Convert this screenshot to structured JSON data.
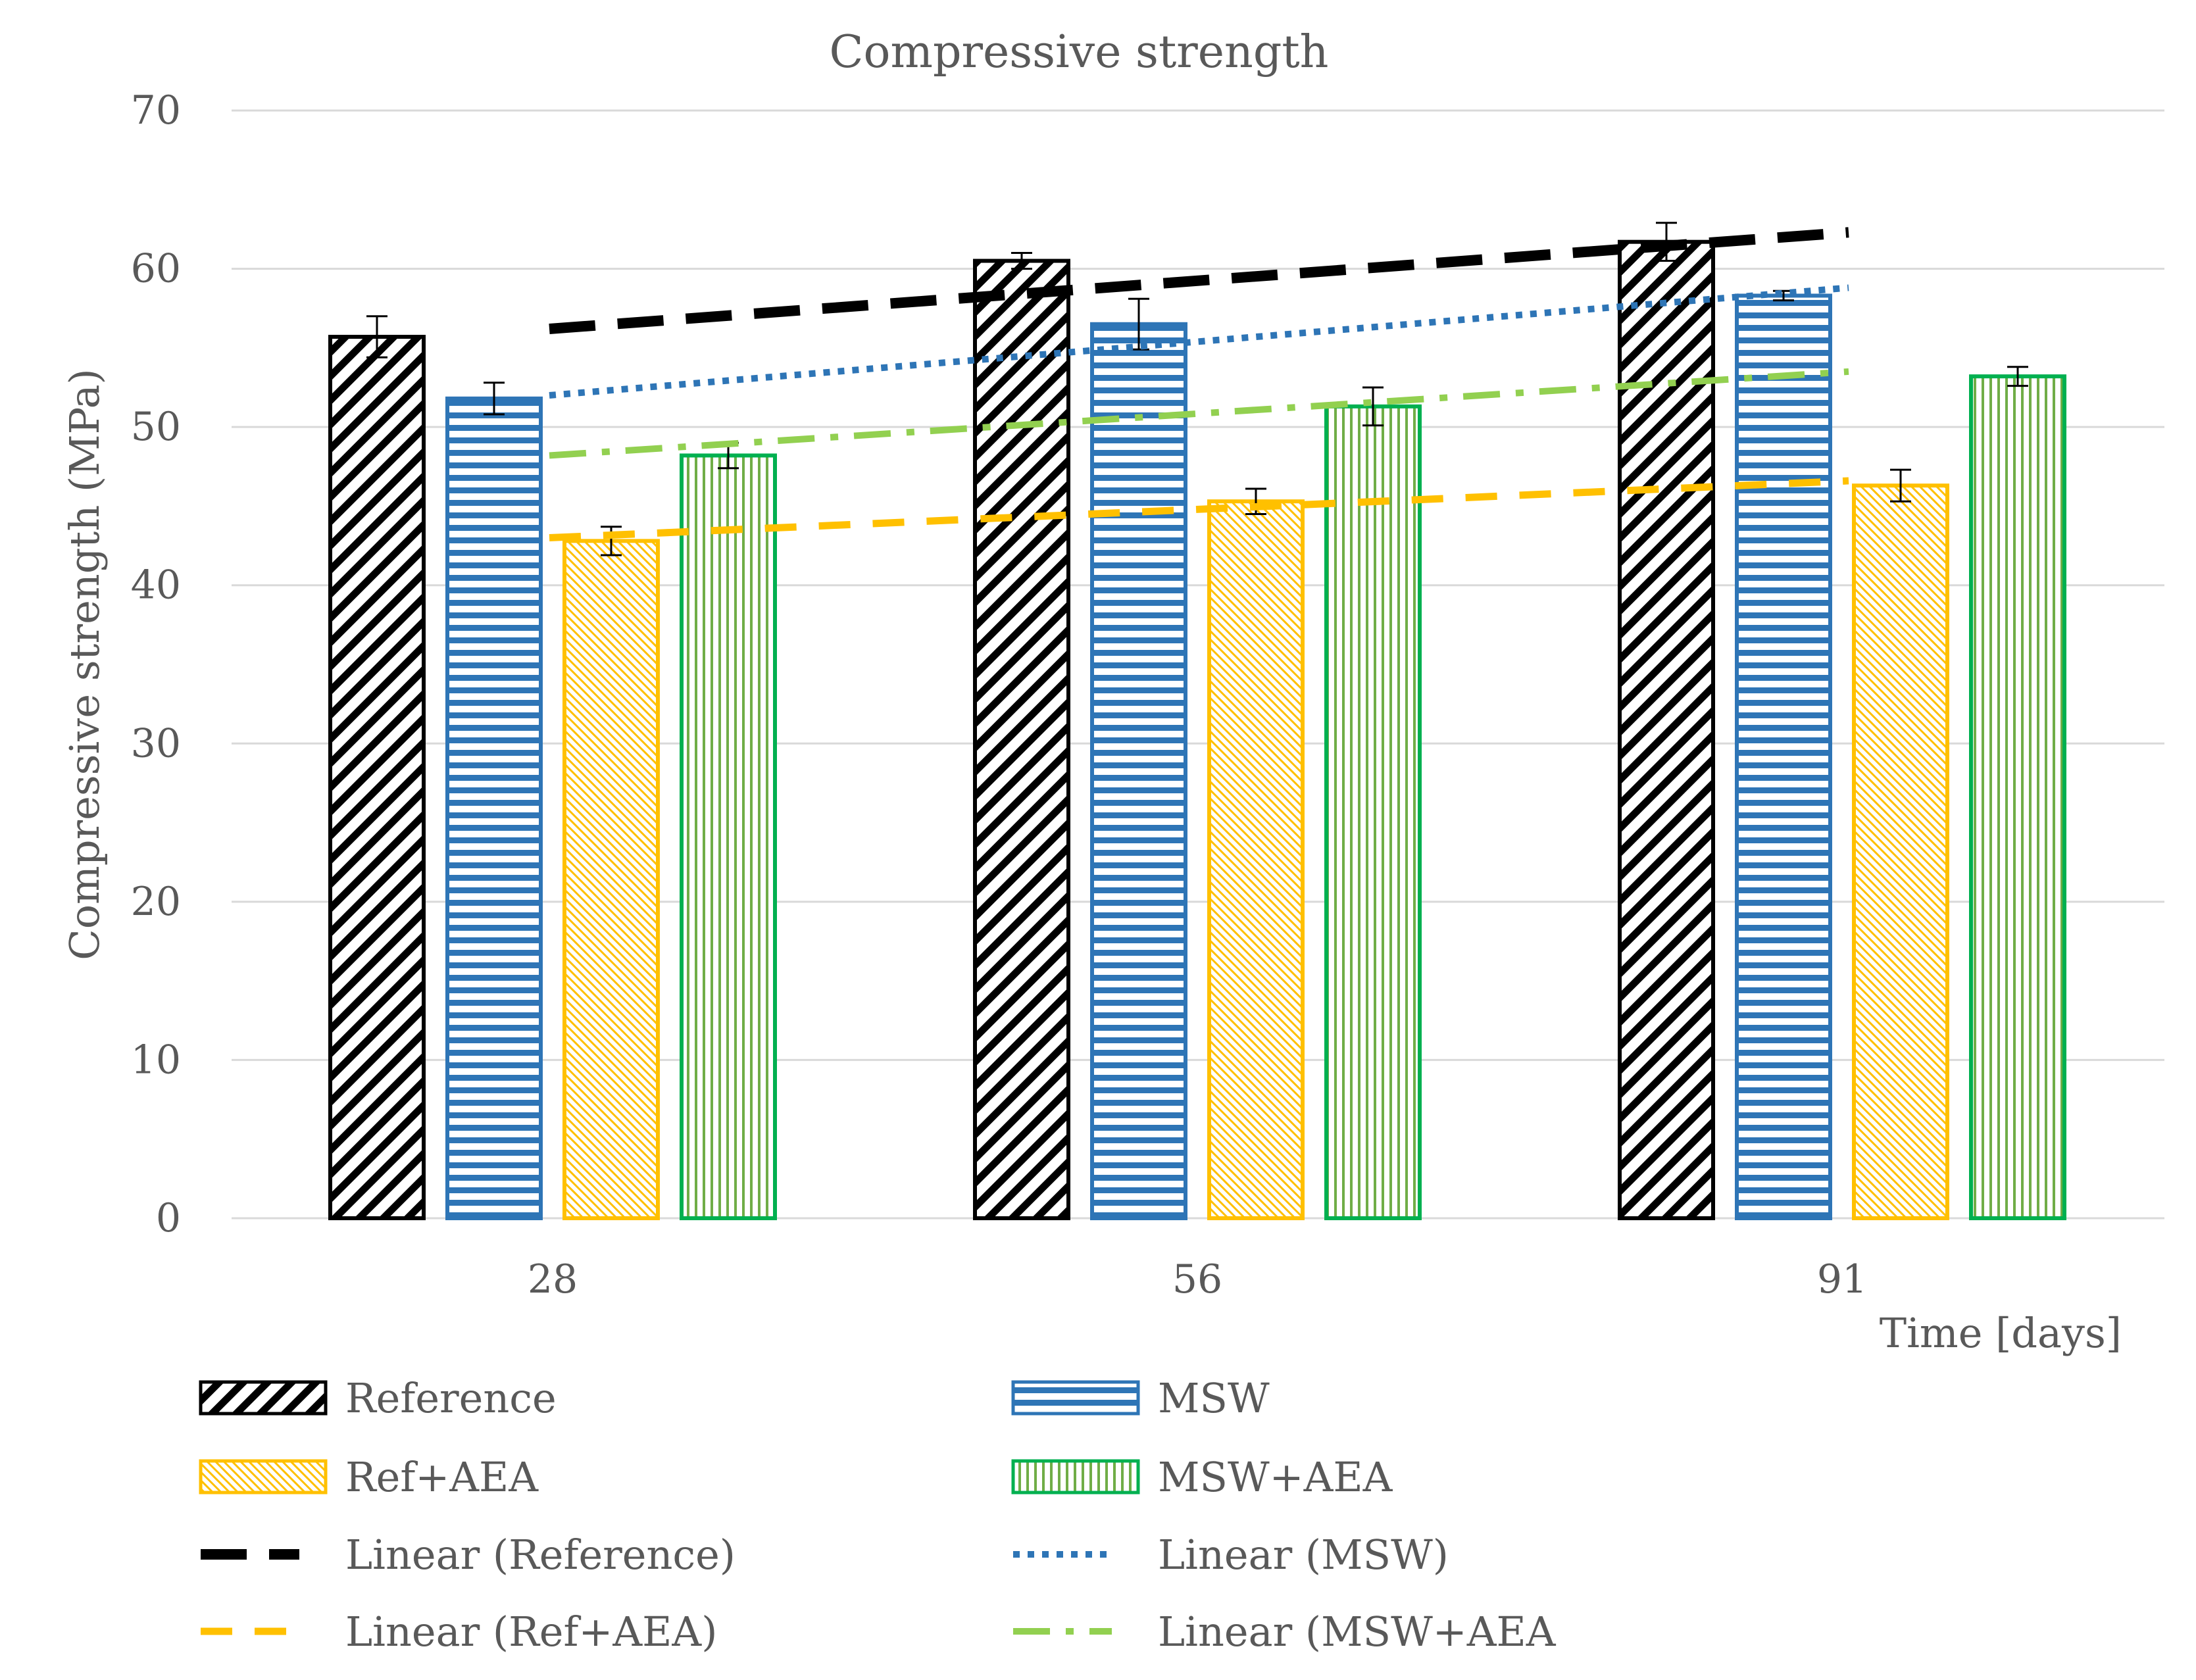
{
  "chart_data": {
    "type": "bar",
    "title": "Compressive strength",
    "xlabel": "Time [days]",
    "ylabel": "Compressive strength (MPa)",
    "categories": [
      "28",
      "56",
      "91"
    ],
    "ylim": [
      0,
      70
    ],
    "yticks": [
      0,
      10,
      20,
      30,
      40,
      50,
      60,
      70
    ],
    "grid": true,
    "legend_position": "bottom",
    "series": [
      {
        "name": "Reference",
        "values": [
          55.7,
          60.5,
          61.7
        ],
        "errors": [
          1.3,
          0.5,
          1.2
        ],
        "color": "#000000",
        "pattern": "diagonal"
      },
      {
        "name": "MSW",
        "values": [
          51.8,
          56.5,
          58.3
        ],
        "errors": [
          1.0,
          1.6,
          0.3
        ],
        "color": "#2e75b6",
        "pattern": "horizontal"
      },
      {
        "name": "Ref+AEA",
        "values": [
          42.8,
          45.3,
          46.3
        ],
        "errors": [
          0.9,
          0.8,
          1.0
        ],
        "color": "#ffc000",
        "pattern": "hatch"
      },
      {
        "name": "MSW+AEA",
        "values": [
          48.2,
          51.3,
          53.2
        ],
        "errors": [
          0.8,
          1.2,
          0.6
        ],
        "color": "#00b050",
        "pattern": "vertical"
      }
    ],
    "trendlines": [
      {
        "name": "Linear (Reference)",
        "of": "Reference",
        "start": 56.2,
        "end": 62.3,
        "color": "#000000",
        "dash": "long-dash"
      },
      {
        "name": "Linear (MSW)",
        "of": "MSW",
        "start": 52.0,
        "end": 58.8,
        "color": "#2e75b6",
        "dash": "dotted"
      },
      {
        "name": "Linear (Ref+AEA)",
        "of": "Ref+AEA",
        "start": 43.0,
        "end": 46.6,
        "color": "#ffc000",
        "dash": "dashed"
      },
      {
        "name": "Linear (MSW+AEA",
        "of": "MSW+AEA",
        "start": 48.2,
        "end": 53.5,
        "color": "#92d050",
        "dash": "dash-dot"
      }
    ]
  }
}
